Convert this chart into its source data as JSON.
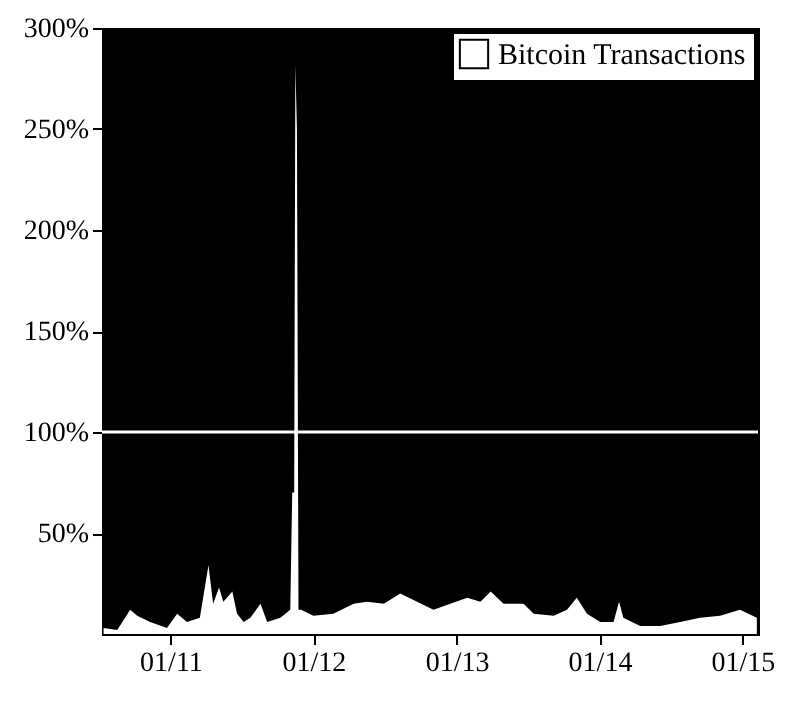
{
  "chart_data": {
    "type": "area",
    "x": [
      "2010-07-14",
      "2010-08-18",
      "2010-09-20",
      "2010-10-08",
      "2010-11-10",
      "2010-12-23",
      "2011-01-18",
      "2011-02-12",
      "2011-03-17",
      "2011-04-08",
      "2011-04-20",
      "2011-05-05",
      "2011-05-16",
      "2011-06-08",
      "2011-06-20",
      "2011-07-07",
      "2011-07-24",
      "2011-08-19",
      "2011-09-05",
      "2011-10-09",
      "2011-11-03",
      "2011-11-08",
      "2011-11-13",
      "2011-11-16",
      "2011-11-20",
      "2011-11-24",
      "2011-12-01",
      "2012-01-01",
      "2012-02-21",
      "2012-04-13",
      "2012-05-17",
      "2012-06-29",
      "2012-08-10",
      "2012-09-22",
      "2012-11-03",
      "2012-12-16",
      "2013-01-28",
      "2013-03-03",
      "2013-03-29",
      "2013-05-01",
      "2013-06-21",
      "2013-07-17",
      "2013-09-06",
      "2013-10-10",
      "2013-11-04",
      "2013-11-30",
      "2014-01-03",
      "2014-02-06",
      "2014-02-20",
      "2014-03-03",
      "2014-04-15",
      "2014-06-05",
      "2014-07-26",
      "2014-09-15",
      "2014-11-05",
      "2014-12-26",
      "2015-02-07"
    ],
    "series": [
      {
        "name": "Bitcoin Transactions",
        "color": "#ffffff",
        "values": [
          3,
          2,
          12,
          9,
          6,
          3,
          10,
          6,
          8,
          34,
          15,
          23,
          16,
          21,
          10,
          6,
          8,
          15,
          6,
          8,
          12,
          70,
          70,
          282,
          250,
          12,
          12,
          9,
          10,
          15,
          16,
          15,
          20,
          16,
          12,
          15,
          18,
          16,
          21,
          15,
          15,
          10,
          9,
          12,
          18,
          10,
          6,
          6,
          16,
          8,
          4,
          4,
          6,
          8,
          9,
          12,
          8
        ]
      }
    ],
    "xlim": [
      "2010-07-10",
      "2015-02-10"
    ],
    "xticks": [
      {
        "value": "2011-01-01",
        "label": "01/11"
      },
      {
        "value": "2012-01-01",
        "label": "01/12"
      },
      {
        "value": "2013-01-01",
        "label": "01/13"
      },
      {
        "value": "2014-01-01",
        "label": "01/14"
      },
      {
        "value": "2015-01-01",
        "label": "01/15"
      }
    ],
    "ylim": [
      0,
      300
    ],
    "yticks": [
      {
        "value": 50,
        "label": "50%"
      },
      {
        "value": 100,
        "label": "100%"
      },
      {
        "value": 150,
        "label": "150%"
      },
      {
        "value": 200,
        "label": "200%"
      },
      {
        "value": 250,
        "label": "250%"
      },
      {
        "value": 300,
        "label": "300%"
      }
    ],
    "ref_lines": [
      {
        "axis": "y",
        "value": 100,
        "color": "#ffffff"
      }
    ],
    "legend": "top right",
    "grid": false
  }
}
